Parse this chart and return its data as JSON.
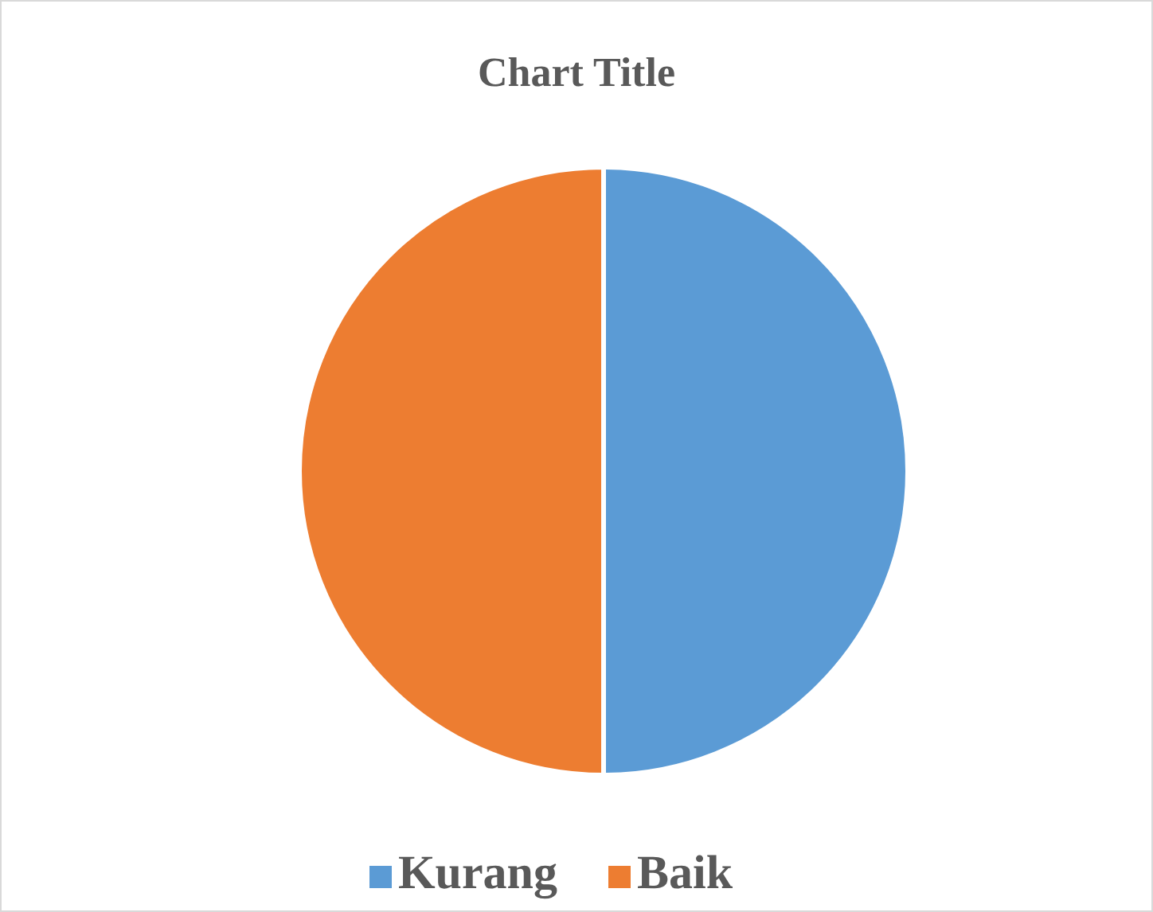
{
  "chart_data": {
    "type": "pie",
    "title": "Chart Title",
    "categories": [
      "Kurang",
      "Baik"
    ],
    "values": [
      50,
      50
    ],
    "colors": [
      "#5b9bd5",
      "#ed7d31"
    ],
    "legend": "bottom"
  }
}
